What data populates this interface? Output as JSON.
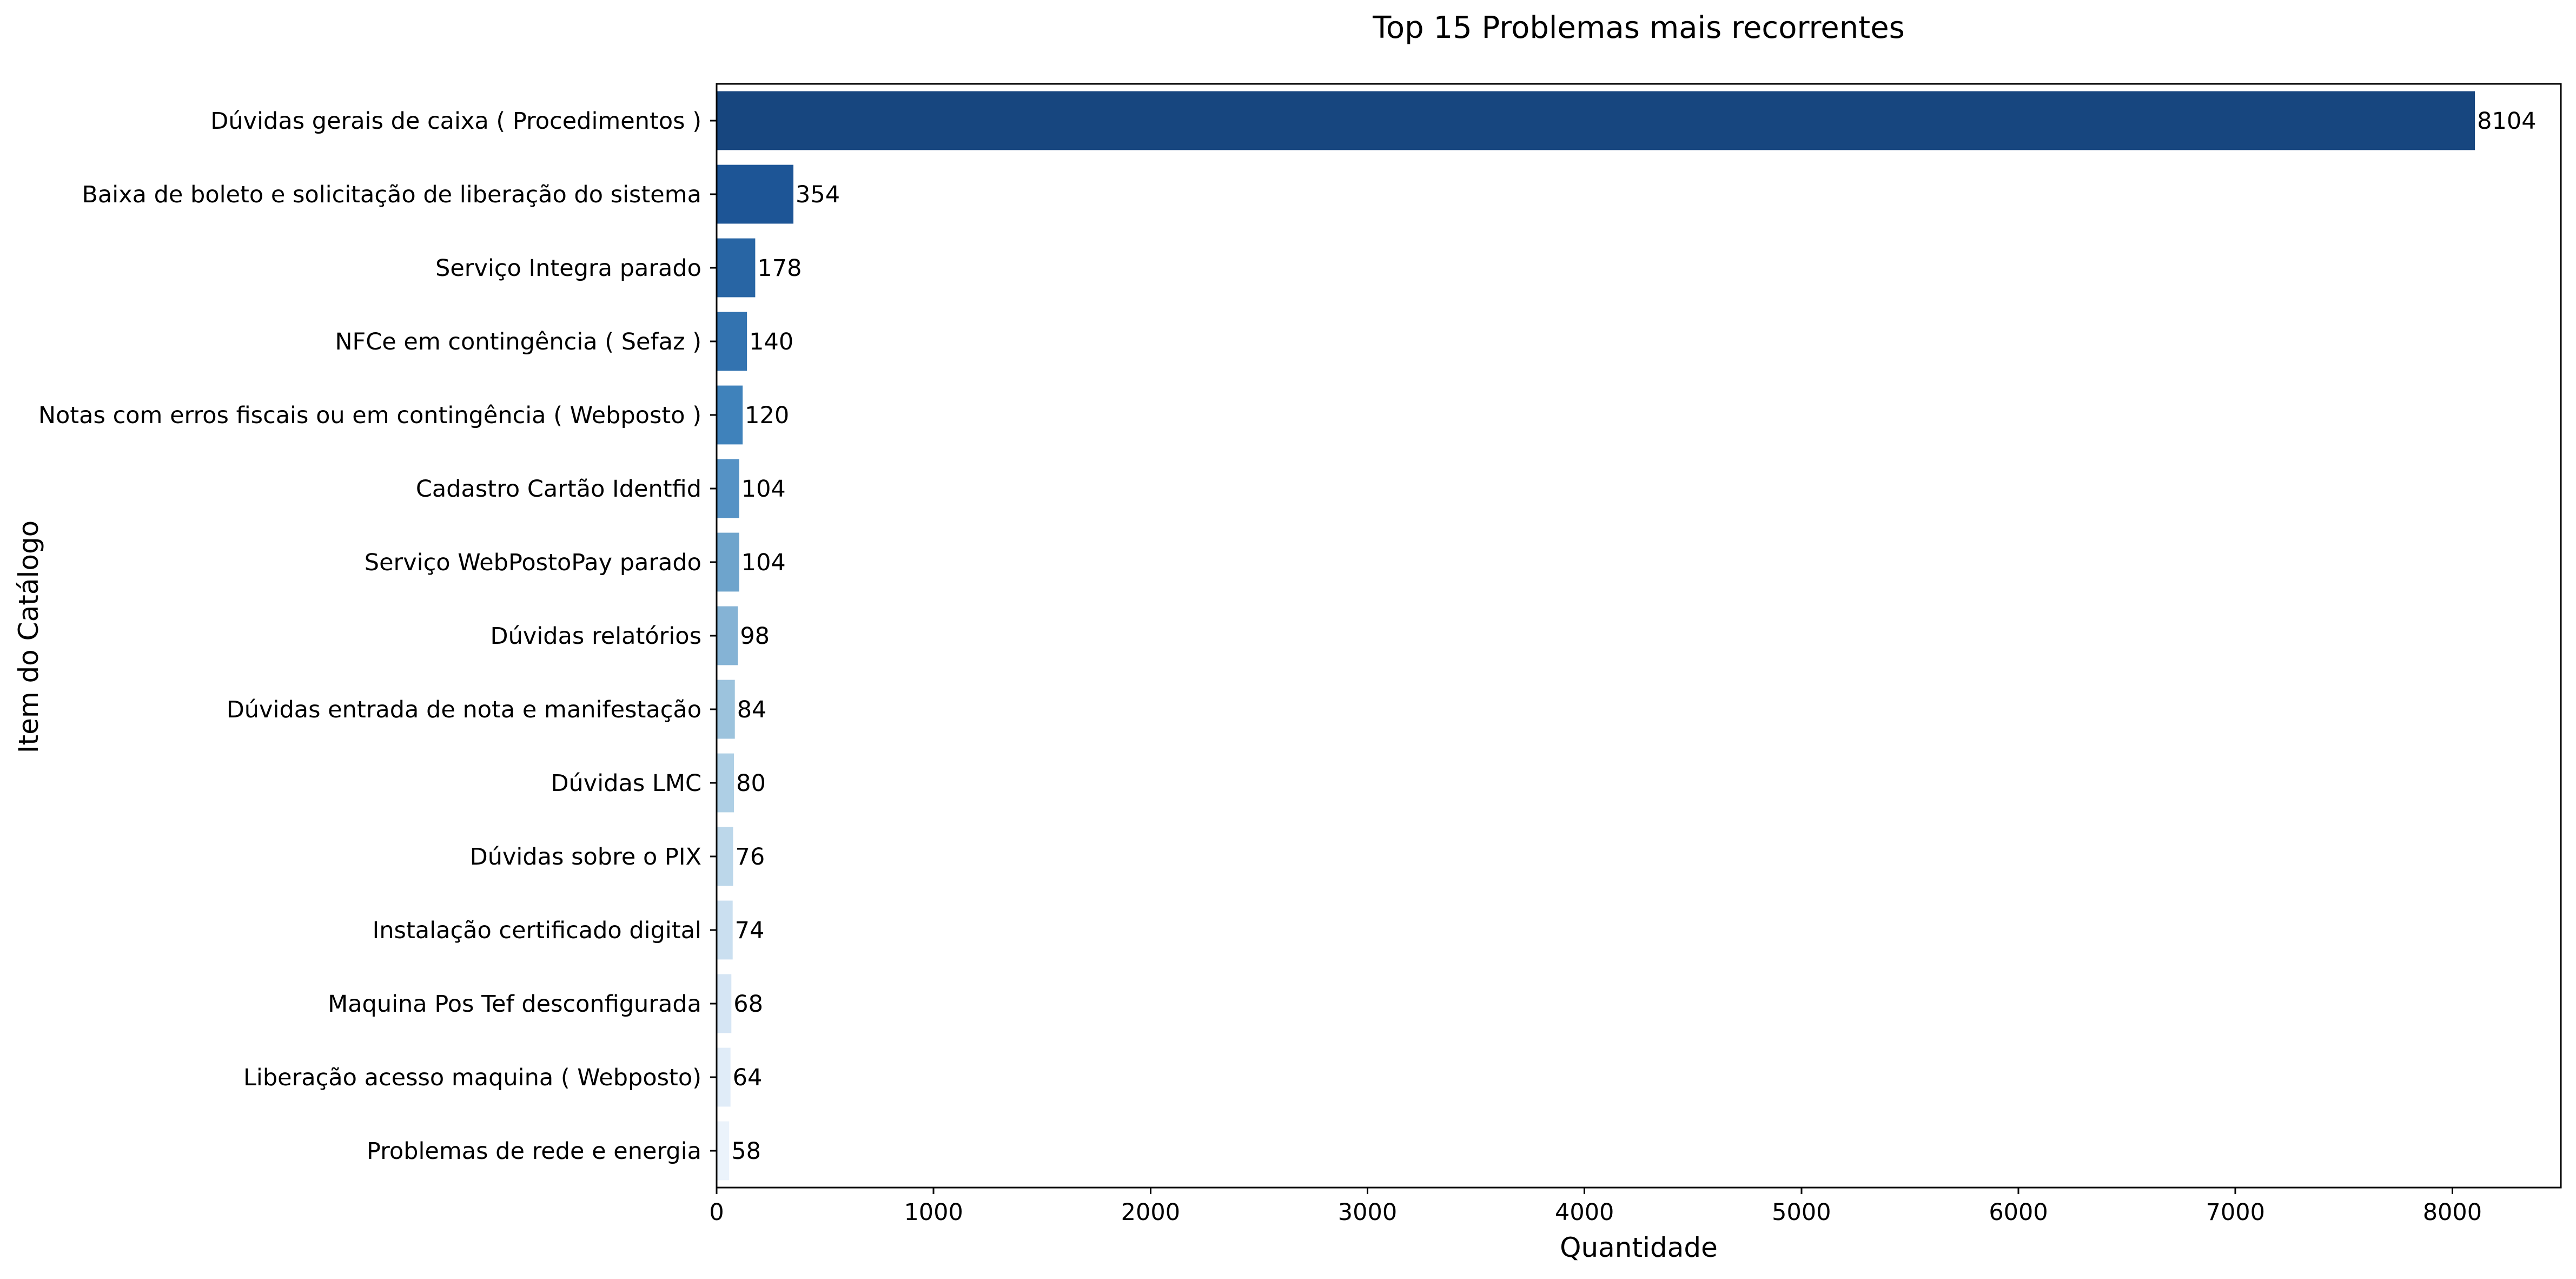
{
  "chart_data": {
    "type": "bar",
    "orientation": "horizontal",
    "title": "Top 15 Problemas mais recorrentes",
    "xlabel": "Quantidade",
    "ylabel": "Item do Catálogo",
    "xlim": [
      0,
      8500
    ],
    "xticks": [
      0,
      1000,
      2000,
      3000,
      4000,
      5000,
      6000,
      7000,
      8000
    ],
    "grid": false,
    "legend": "none",
    "categories": [
      "Dúvidas gerais de caixa ( Procedimentos )",
      "Baixa de boleto e solicitação de liberação do sistema",
      "Serviço Integra parado",
      "NFCe em contingência ( Sefaz )",
      "Notas com erros fiscais ou em contingência  ( Webposto )",
      "Cadastro Cartão Identfid",
      "Serviço WebPostoPay parado",
      "Dúvidas relatórios",
      "Dúvidas entrada de nota e manifestação",
      "Dúvidas LMC",
      "Dúvidas sobre o PIX",
      "Instalação certificado digital",
      "Maquina Pos Tef desconfigurada",
      "Liberação acesso maquina ( Webposto)",
      "Problemas de rede e energia"
    ],
    "values": [
      8104,
      354,
      178,
      140,
      120,
      104,
      104,
      98,
      84,
      80,
      76,
      74,
      68,
      64,
      58
    ],
    "colors": [
      "#17467f",
      "#1d5596",
      "#2865a4",
      "#3373b0",
      "#3f82bb",
      "#5592c5",
      "#6ea4cc",
      "#85b3d5",
      "#9cc3dd",
      "#aecfe5",
      "#bcd7ea",
      "#cadff0",
      "#d5e5f4",
      "#e0ecf8",
      "#ebf3fb"
    ]
  }
}
